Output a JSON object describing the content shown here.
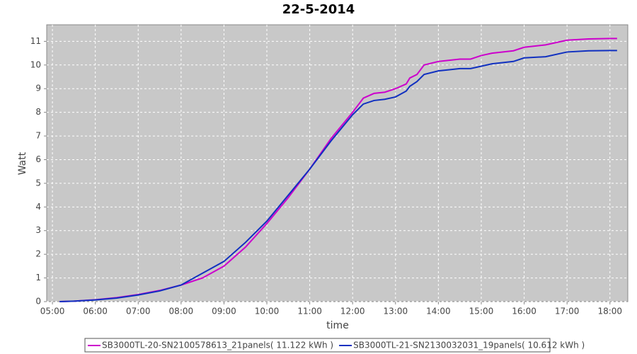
{
  "chart_data": {
    "type": "line",
    "title": "22-5-2014",
    "x_label": "time",
    "y_label": "Watt",
    "x": [
      "05:10",
      "05:30",
      "06:00",
      "06:30",
      "07:00",
      "07:30",
      "08:00",
      "08:30",
      "09:00",
      "09:30",
      "10:00",
      "10:30",
      "11:00",
      "11:30",
      "12:00",
      "12:15",
      "12:30",
      "12:45",
      "13:00",
      "13:15",
      "13:20",
      "13:30",
      "13:40",
      "14:00",
      "14:30",
      "14:45",
      "15:00",
      "15:15",
      "15:45",
      "16:00",
      "16:30",
      "17:00",
      "17:30",
      "18:00",
      "18:10"
    ],
    "series": [
      {
        "name": "SB3000TL-20-SN2100578613_21panels( 11.122 kWh )",
        "color": "#cc00cc",
        "values": [
          0,
          0.02,
          0.08,
          0.17,
          0.3,
          0.47,
          0.7,
          1.0,
          1.5,
          2.3,
          3.3,
          4.4,
          5.6,
          6.9,
          8.0,
          8.6,
          8.8,
          8.85,
          9.0,
          9.2,
          9.45,
          9.6,
          10.0,
          10.15,
          10.25,
          10.25,
          10.4,
          10.5,
          10.6,
          10.75,
          10.85,
          11.05,
          11.1,
          11.12,
          11.12
        ]
      },
      {
        "name": "SB3000TL-21-SN2130032031_19panels( 10.612 kWh )",
        "color": "#1030c0",
        "values": [
          0,
          0.02,
          0.07,
          0.15,
          0.28,
          0.45,
          0.7,
          1.2,
          1.7,
          2.5,
          3.4,
          4.5,
          5.6,
          6.8,
          7.9,
          8.35,
          8.5,
          8.55,
          8.65,
          8.9,
          9.1,
          9.3,
          9.6,
          9.75,
          9.85,
          9.85,
          9.95,
          10.05,
          10.15,
          10.3,
          10.35,
          10.55,
          10.6,
          10.61,
          10.61
        ]
      }
    ],
    "xlim": [
      "04:52",
      "18:25"
    ],
    "xticks": [
      "05:00",
      "06:00",
      "07:00",
      "08:00",
      "09:00",
      "10:00",
      "11:00",
      "12:00",
      "13:00",
      "14:00",
      "15:00",
      "16:00",
      "17:00",
      "18:00"
    ],
    "ylim": [
      0,
      11.7
    ],
    "yticks": [
      0,
      1,
      2,
      3,
      4,
      5,
      6,
      7,
      8,
      9,
      10,
      11
    ],
    "grid": true,
    "legend": "bottom"
  }
}
